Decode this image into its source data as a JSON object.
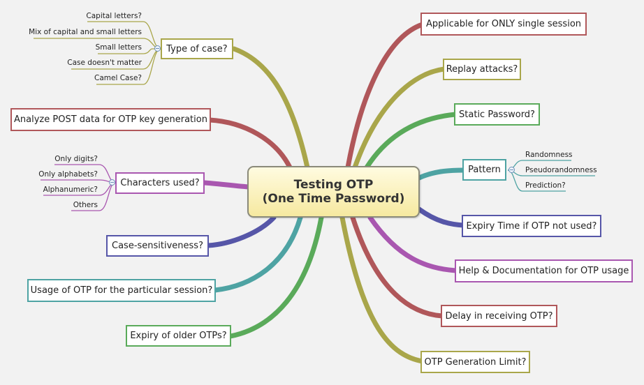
{
  "center": {
    "line1": "Testing OTP",
    "line2": "(One Time Password)"
  },
  "colors": {
    "olive": "#a9a64a",
    "red": "#b0575a",
    "green": "#5aaa5a",
    "teal": "#4ea3a3",
    "navy": "#5656a8",
    "purple": "#a957b0"
  },
  "left_nodes": {
    "type_of_case": "Type of case?",
    "analyze_post": "Analyze POST data for OTP key generation",
    "characters_used": "Characters used?",
    "case_sensitiveness": "Case-sensitiveness?",
    "usage_session": "Usage of OTP for the particular session?",
    "expiry_older": "Expiry of older OTPs?"
  },
  "right_nodes": {
    "single_session": "Applicable for ONLY single session",
    "replay_attacks": "Replay attacks?",
    "static_password": "Static Password?",
    "pattern": "Pattern",
    "expiry_time": "Expiry Time if OTP not used?",
    "help_docs": "Help & Documentation for OTP usage",
    "delay_receiving": "Delay in receiving OTP?",
    "generation_limit": "OTP Generation Limit?"
  },
  "case_leaves": [
    "Capital letters?",
    "Mix of capital and small letters",
    "Small letters",
    "Case doesn't matter",
    "Camel Case?"
  ],
  "char_leaves": [
    "Only digits?",
    "Only alphabets?",
    "Alphanumeric?",
    "Others"
  ],
  "pattern_leaves": [
    "Randomness",
    "Pseudorandomness",
    "Prediction?"
  ]
}
